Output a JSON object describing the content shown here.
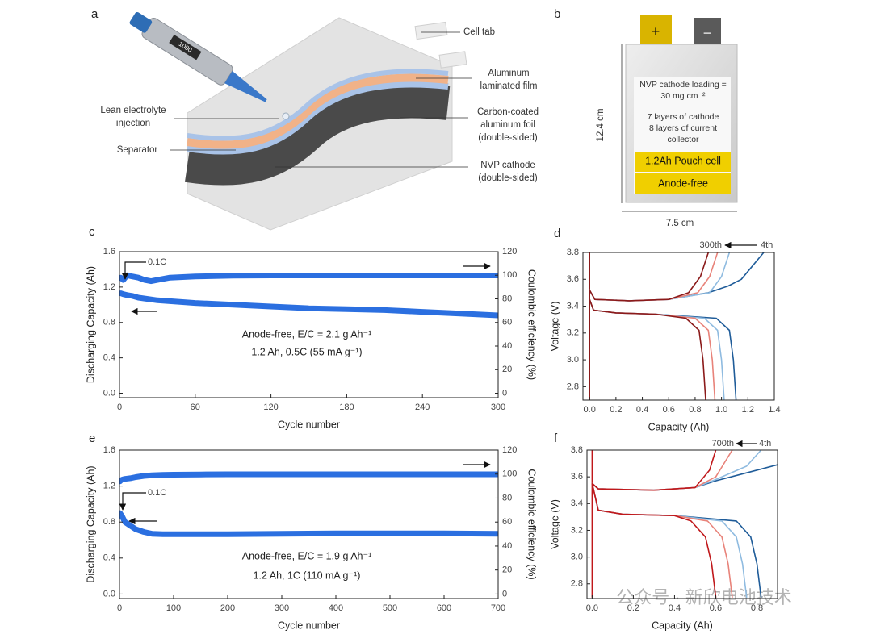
{
  "panel_labels": [
    "a",
    "b",
    "c",
    "d",
    "e",
    "f"
  ],
  "schematic": {
    "cell_tab": "Cell tab",
    "film": [
      "Aluminum",
      "laminated film"
    ],
    "electrolyte": [
      "Lean electrolyte",
      "injection"
    ],
    "foil": [
      "Carbon-coated",
      "aluminum foil",
      "(double-sided)"
    ],
    "separator": "Separator",
    "cathode": [
      "NVP cathode",
      "(double-sided)"
    ],
    "pipette_display": "1000"
  },
  "photo": {
    "positive": "+",
    "negative": "−",
    "loading": [
      "NVP cathode loading =",
      "30 mg cm⁻²"
    ],
    "layers": [
      "7 layers of cathode",
      "8 layers of current",
      "collector"
    ],
    "cell": "1.2Ah Pouch cell",
    "anode": "Anode-free",
    "height": "12.4 cm",
    "width": "7.5 cm"
  },
  "watermark": "公众号 · 新欣电池技术",
  "chart_data": [
    {
      "type": "line",
      "x_label": "Cycle number",
      "y_label": "Discharging Capacity (Ah)",
      "y2_label": "Coulombic efficiency (%)",
      "xlim": [
        0,
        300
      ],
      "xticks": [
        0,
        60,
        120,
        180,
        240,
        300
      ],
      "ylim": [
        -0.05,
        1.6
      ],
      "yticks": [
        {
          "value": 0,
          "label": "0.0"
        },
        0.4,
        0.8,
        1.2,
        1.6
      ],
      "y2lim": [
        -3.75,
        120
      ],
      "y2ticks": [
        0,
        20,
        40,
        60,
        80,
        100,
        120
      ],
      "annotations": [
        "0.1C",
        "Anode-free, E/C = 2.1 g Ah⁻¹",
        "1.2 Ah, 0.5C (55 mA g⁻¹)"
      ],
      "series": [
        {
          "color": "#2b6fe0",
          "x": [
            1,
            3,
            6,
            10,
            15,
            20,
            25,
            30,
            40,
            60,
            90,
            120,
            150,
            180,
            210,
            240,
            270,
            300
          ],
          "values": [
            1.13,
            1.12,
            1.11,
            1.1,
            1.08,
            1.07,
            1.06,
            1.05,
            1.04,
            1.02,
            1.0,
            0.98,
            0.96,
            0.95,
            0.94,
            0.92,
            0.9,
            0.88
          ]
        },
        {
          "color": "#2b6fe0",
          "axis": "y2",
          "x": [
            1,
            3,
            6,
            10,
            15,
            20,
            25,
            30,
            40,
            60,
            90,
            120,
            150,
            180,
            210,
            240,
            270,
            300
          ],
          "values": [
            98,
            96,
            100,
            99,
            98,
            96,
            95,
            96,
            98,
            99,
            99.6,
            99.8,
            99.8,
            99.8,
            99.8,
            99.8,
            99.8,
            99.8
          ]
        }
      ]
    },
    {
      "type": "line",
      "x_label": "Capacity (Ah)",
      "y_label": "Voltage (V)",
      "xlim": [
        -0.05,
        1.4
      ],
      "xticks": [
        {
          "value": 0,
          "label": "0.0"
        },
        0.2,
        0.4,
        0.6,
        0.8,
        {
          "value": 1,
          "label": "1.0"
        },
        1.2,
        1.4
      ],
      "ylim": [
        2.7,
        3.8
      ],
      "yticks": [
        2.8,
        {
          "value": 3,
          "label": "3.0"
        },
        3.2,
        3.4,
        3.6,
        3.8
      ],
      "annotations": [
        "300th",
        "4th"
      ],
      "series": [
        {
          "color": "#1f5c99",
          "x": [
            0,
            0.03,
            0.2,
            0.5,
            0.96,
            1.06,
            1.09,
            1.11
          ],
          "values": [
            3.45,
            3.37,
            3.35,
            3.34,
            3.31,
            3.22,
            3.0,
            2.7
          ]
        },
        {
          "color": "#8fbbe0",
          "x": [
            0,
            0.03,
            0.2,
            0.5,
            0.87,
            0.97,
            1.0,
            1.02
          ],
          "values": [
            3.45,
            3.37,
            3.35,
            3.34,
            3.31,
            3.22,
            3.0,
            2.7
          ]
        },
        {
          "color": "#e8837a",
          "x": [
            0,
            0.03,
            0.2,
            0.5,
            0.8,
            0.9,
            0.93,
            0.95
          ],
          "values": [
            3.45,
            3.37,
            3.35,
            3.34,
            3.31,
            3.22,
            3.0,
            2.7
          ]
        },
        {
          "color": "#8b1a1a",
          "x": [
            0,
            0,
            0.03,
            0.2,
            0.5,
            0.73,
            0.83,
            0.86,
            0.88
          ],
          "values": [
            3.8,
            3.45,
            3.37,
            3.35,
            3.34,
            3.31,
            3.22,
            3.0,
            2.7
          ]
        },
        {
          "color": "#1f5c99",
          "x": [
            0,
            0.04,
            0.3,
            0.6,
            0.9,
            1.05,
            1.15,
            1.32
          ],
          "values": [
            3.52,
            3.45,
            3.44,
            3.45,
            3.5,
            3.55,
            3.6,
            3.8
          ]
        },
        {
          "color": "#8fbbe0",
          "x": [
            0,
            0.04,
            0.3,
            0.6,
            0.91,
            1.0,
            1.06
          ],
          "values": [
            3.52,
            3.45,
            3.44,
            3.45,
            3.5,
            3.62,
            3.8
          ]
        },
        {
          "color": "#e8837a",
          "x": [
            0,
            0.04,
            0.3,
            0.6,
            0.82,
            0.91,
            0.97
          ],
          "values": [
            3.52,
            3.45,
            3.44,
            3.45,
            3.5,
            3.62,
            3.8
          ]
        },
        {
          "color": "#8b1a1a",
          "x": [
            0,
            0,
            0.04,
            0.3,
            0.6,
            0.75,
            0.84,
            0.9
          ],
          "values": [
            2.7,
            3.52,
            3.45,
            3.44,
            3.45,
            3.5,
            3.62,
            3.8
          ]
        }
      ]
    },
    {
      "type": "line",
      "x_label": "Cycle number",
      "y_label": "Discharging Capacity (Ah)",
      "y2_label": "Coulombic efficiency (%)",
      "xlim": [
        0,
        700
      ],
      "xticks": [
        0,
        100,
        200,
        300,
        400,
        500,
        600,
        700
      ],
      "ylim": [
        -0.05,
        1.6
      ],
      "yticks": [
        {
          "value": 0,
          "label": "0.0"
        },
        0.4,
        0.8,
        1.2,
        1.6
      ],
      "y2lim": [
        -3.75,
        120
      ],
      "y2ticks": [
        0,
        20,
        40,
        60,
        80,
        100,
        120
      ],
      "annotations": [
        "0.1C",
        "Anode-free, E/C = 1.9 g Ah⁻¹",
        "1.2 Ah, 1C (110 mA g⁻¹)"
      ],
      "series": [
        {
          "color": "#2b6fe0",
          "x": [
            1,
            3,
            6,
            10,
            20,
            30,
            45,
            60,
            80,
            100,
            150,
            200,
            300,
            400,
            500,
            600,
            700
          ],
          "values": [
            0.9,
            0.88,
            0.85,
            0.8,
            0.76,
            0.72,
            0.69,
            0.67,
            0.665,
            0.665,
            0.665,
            0.665,
            0.67,
            0.675,
            0.675,
            0.675,
            0.67
          ]
        },
        {
          "color": "#2b6fe0",
          "axis": "y2",
          "x": [
            1,
            3,
            6,
            10,
            20,
            30,
            45,
            60,
            80,
            100,
            150,
            200,
            300,
            400,
            500,
            600,
            700
          ],
          "values": [
            94,
            95,
            95.5,
            96,
            96.5,
            97.5,
            98.5,
            99,
            99.3,
            99.5,
            99.7,
            99.8,
            99.8,
            99.8,
            99.8,
            99.8,
            99.8
          ]
        }
      ]
    },
    {
      "type": "line",
      "x_label": "Capacity (Ah)",
      "y_label": "Voltage (V)",
      "xlim": [
        -0.025,
        0.9
      ],
      "xticks": [
        {
          "value": 0,
          "label": "0.0"
        },
        0.2,
        0.4,
        0.6,
        0.8
      ],
      "ylim": [
        2.69,
        3.8
      ],
      "yticks": [
        2.8,
        {
          "value": 3,
          "label": "3.0"
        },
        3.2,
        3.4,
        3.6,
        3.8
      ],
      "annotations": [
        "700th",
        "4th"
      ],
      "series": [
        {
          "color": "#1f5c99",
          "x": [
            0,
            0.03,
            0.15,
            0.4,
            0.7,
            0.77,
            0.8,
            0.82
          ],
          "values": [
            3.55,
            3.35,
            3.32,
            3.31,
            3.27,
            3.15,
            2.95,
            2.7
          ]
        },
        {
          "color": "#8fbbe0",
          "x": [
            0,
            0.03,
            0.15,
            0.4,
            0.63,
            0.7,
            0.73,
            0.75
          ],
          "values": [
            3.55,
            3.35,
            3.32,
            3.31,
            3.27,
            3.15,
            2.95,
            2.7
          ]
        },
        {
          "color": "#e8837a",
          "x": [
            0,
            0.03,
            0.15,
            0.4,
            0.56,
            0.63,
            0.66,
            0.68
          ],
          "values": [
            3.55,
            3.35,
            3.32,
            3.31,
            3.27,
            3.15,
            2.95,
            2.7
          ]
        },
        {
          "color": "#c0181b",
          "x": [
            0,
            0,
            0.03,
            0.15,
            0.4,
            0.48,
            0.55,
            0.58,
            0.6
          ],
          "values": [
            3.8,
            3.55,
            3.35,
            3.32,
            3.31,
            3.27,
            3.15,
            2.95,
            2.7
          ]
        },
        {
          "color": "#1f5c99",
          "x": [
            0,
            0.03,
            0.3,
            0.5,
            0.6,
            0.75,
            0.9
          ],
          "values": [
            3.55,
            3.51,
            3.5,
            3.52,
            3.57,
            3.63,
            3.69
          ]
        },
        {
          "color": "#8fbbe0",
          "x": [
            0,
            0.03,
            0.3,
            0.5,
            0.6,
            0.75,
            0.82
          ],
          "values": [
            3.55,
            3.51,
            3.5,
            3.52,
            3.58,
            3.68,
            3.8
          ]
        },
        {
          "color": "#e8837a",
          "x": [
            0,
            0.03,
            0.3,
            0.5,
            0.6,
            0.68
          ],
          "values": [
            3.55,
            3.51,
            3.5,
            3.52,
            3.6,
            3.8
          ]
        },
        {
          "color": "#c0181b",
          "x": [
            0,
            0,
            0.03,
            0.3,
            0.5,
            0.57,
            0.6
          ],
          "values": [
            2.7,
            3.55,
            3.51,
            3.5,
            3.52,
            3.65,
            3.8
          ]
        }
      ]
    }
  ]
}
